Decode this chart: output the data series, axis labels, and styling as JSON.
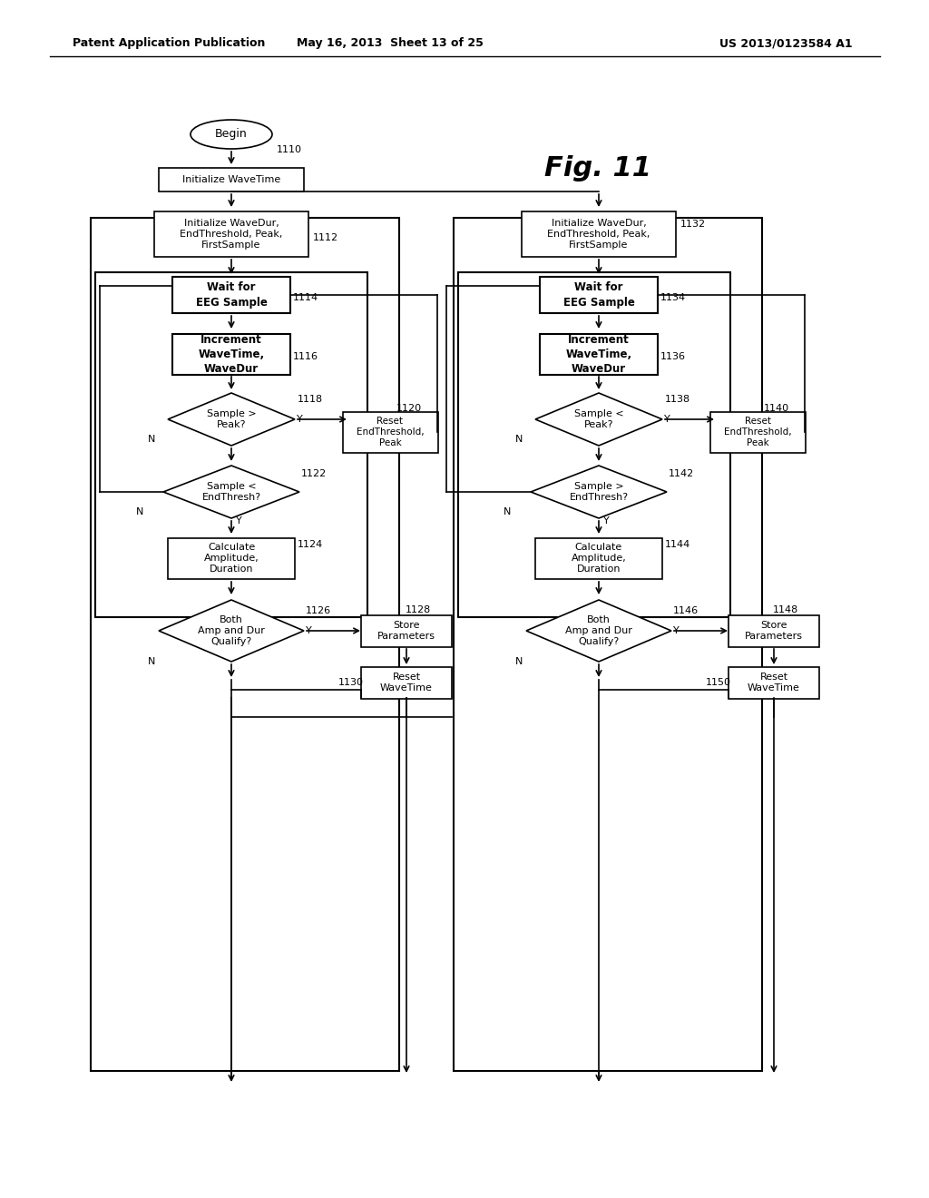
{
  "header_left": "Patent Application Publication",
  "header_mid": "May 16, 2013  Sheet 13 of 25",
  "header_right": "US 2013/0123584 A1",
  "fig_label": "Fig. 11",
  "bg": "#ffffff",
  "lc": "#000000"
}
